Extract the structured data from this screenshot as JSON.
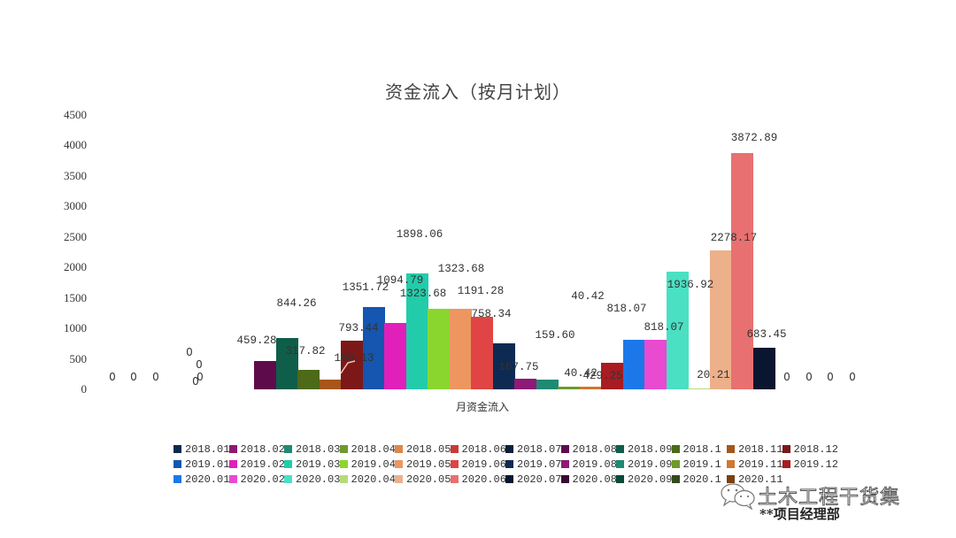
{
  "chart_data": {
    "type": "bar",
    "title": "资金流入（按月计划）",
    "xlabel": "月资金流入",
    "ylabel": "",
    "ylim": [
      0,
      4500
    ],
    "yticks": [
      0,
      500,
      1000,
      1500,
      2000,
      2500,
      3000,
      3500,
      4000,
      4500
    ],
    "grid": false,
    "legend_position": "bottom",
    "categories": [
      "月资金流入"
    ],
    "series": [
      {
        "name": "2018.01",
        "value": 0,
        "color": "#0b2a4f"
      },
      {
        "name": "2018.02",
        "value": 0,
        "color": "#8e1a6e"
      },
      {
        "name": "2018.03",
        "value": 0,
        "color": "#1f8a70"
      },
      {
        "name": "2018.04",
        "value": 0,
        "color": "#6e9a2c"
      },
      {
        "name": "2018.05",
        "value": 0,
        "color": "#e0864a"
      },
      {
        "name": "2018.06",
        "value": 0,
        "color": "#c83a3a"
      },
      {
        "name": "2018.07",
        "value": 0,
        "color": "#0c1f3a"
      },
      {
        "name": "2018.08",
        "value": 459.28,
        "color": "#5e0b4c"
      },
      {
        "name": "2018.09",
        "value": 844.26,
        "color": "#0e5e4a"
      },
      {
        "name": "2018.1",
        "value": 317.82,
        "color": "#4c6a18"
      },
      {
        "name": "2018.11",
        "value": 160.13,
        "color": "#a6561a"
      },
      {
        "name": "2018.12",
        "value": 793.44,
        "color": "#7c1818"
      },
      {
        "name": "2019.01",
        "value": 1351.72,
        "color": "#1456b0"
      },
      {
        "name": "2019.02",
        "value": 1094.79,
        "color": "#e020b8"
      },
      {
        "name": "2019.03",
        "value": 1898.06,
        "color": "#22ccaa"
      },
      {
        "name": "2019.04",
        "value": 1323.68,
        "color": "#8ad62e"
      },
      {
        "name": "2019.05",
        "value": 1323.68,
        "color": "#ee9660"
      },
      {
        "name": "2019.06",
        "value": 1191.28,
        "color": "#e04444"
      },
      {
        "name": "2019.07",
        "value": 758.34,
        "color": "#0e2a52"
      },
      {
        "name": "2019.08",
        "value": 167.75,
        "color": "#8e1a78"
      },
      {
        "name": "2019.09",
        "value": 159.6,
        "color": "#1e8a72"
      },
      {
        "name": "2019.1",
        "value": 40.42,
        "color": "#6e9a2c"
      },
      {
        "name": "2019.11",
        "value": 40.42,
        "color": "#d0782e"
      },
      {
        "name": "2019.12",
        "value": 429.25,
        "color": "#a81c22"
      },
      {
        "name": "2020.01",
        "value": 818.07,
        "color": "#1c78e8"
      },
      {
        "name": "2020.02",
        "value": 818.07,
        "color": "#e84ad0"
      },
      {
        "name": "2020.03",
        "value": 1936.92,
        "color": "#4ae0c4"
      },
      {
        "name": "2020.04",
        "value": 20.21,
        "color": "#b4dc78"
      },
      {
        "name": "2020.05",
        "value": 2278.17,
        "color": "#ecb08a"
      },
      {
        "name": "2020.06",
        "value": 3872.89,
        "color": "#e87070"
      },
      {
        "name": "2020.07",
        "value": 683.45,
        "color": "#0a1630"
      },
      {
        "name": "2020.08",
        "value": 0,
        "color": "#3a0a30"
      },
      {
        "name": "2020.09",
        "value": 0,
        "color": "#0a4a3a"
      },
      {
        "name": "2020.1",
        "value": 0,
        "color": "#344a1a"
      },
      {
        "name": "2020.11",
        "value": 0,
        "color": "#7a4014"
      }
    ],
    "data_labels": [
      "0",
      "0",
      "0",
      "0",
      "0",
      "0",
      "0",
      "459.28",
      "844.26",
      "317.82",
      "160.13",
      "793.44",
      "1351.72",
      "1094.79",
      "1898.06",
      "1323.68",
      "1323.68",
      "1191.28",
      "758.34",
      "167.75",
      "159.60",
      "40.42",
      "40.42",
      "429.25",
      "818.07",
      "818.07",
      "1936.92",
      "20.21",
      "2278.17",
      "3872.89",
      "683.45",
      "0",
      "0",
      "0",
      "0"
    ]
  },
  "legend": {
    "rows": [
      [
        {
          "label": "2018.01",
          "color": "#0b2a4f"
        },
        {
          "label": "2018.02",
          "color": "#8e1a6e"
        },
        {
          "label": "2018.03",
          "color": "#1f8a70"
        },
        {
          "label": "2018.04",
          "color": "#6e9a2c"
        },
        {
          "label": "2018.05",
          "color": "#e0864a"
        },
        {
          "label": "2018.06",
          "color": "#c83a3a"
        },
        {
          "label": "2018.07",
          "color": "#0c1f3a"
        },
        {
          "label": "2018.08",
          "color": "#5e0b4c"
        },
        {
          "label": "2018.09",
          "color": "#0e5e4a"
        },
        {
          "label": "2018.1",
          "color": "#4c6a18"
        },
        {
          "label": "2018.11",
          "color": "#a6561a"
        },
        {
          "label": "2018.12",
          "color": "#7c1818"
        }
      ],
      [
        {
          "label": "2019.01",
          "color": "#1456b0"
        },
        {
          "label": "2019.02",
          "color": "#e020b8"
        },
        {
          "label": "2019.03",
          "color": "#22ccaa"
        },
        {
          "label": "2019.04",
          "color": "#8ad62e"
        },
        {
          "label": "2019.05",
          "color": "#ee9660"
        },
        {
          "label": "2019.06",
          "color": "#e04444"
        },
        {
          "label": "2019.07",
          "color": "#0e2a52"
        },
        {
          "label": "2019.08",
          "color": "#8e1a78"
        },
        {
          "label": "2019.09",
          "color": "#1e8a72"
        },
        {
          "label": "2019.1",
          "color": "#6e9a2c"
        },
        {
          "label": "2019.11",
          "color": "#d0782e"
        },
        {
          "label": "2019.12",
          "color": "#a81c22"
        }
      ],
      [
        {
          "label": "2020.01",
          "color": "#1c78e8"
        },
        {
          "label": "2020.02",
          "color": "#e84ad0"
        },
        {
          "label": "2020.03",
          "color": "#4ae0c4"
        },
        {
          "label": "2020.04",
          "color": "#b4dc78"
        },
        {
          "label": "2020.05",
          "color": "#ecb08a"
        },
        {
          "label": "2020.06",
          "color": "#e87070"
        },
        {
          "label": "2020.07",
          "color": "#0a1630"
        },
        {
          "label": "2020.08",
          "color": "#3a0a30"
        },
        {
          "label": "2020.09",
          "color": "#0a4a3a"
        },
        {
          "label": "2020.1",
          "color": "#344a1a"
        },
        {
          "label": "2020.11",
          "color": "#7a4014"
        }
      ]
    ]
  },
  "watermark": {
    "icon": "wechat-bubbles-icon",
    "text": "土木工程干货集",
    "department": "**项目经理部"
  }
}
